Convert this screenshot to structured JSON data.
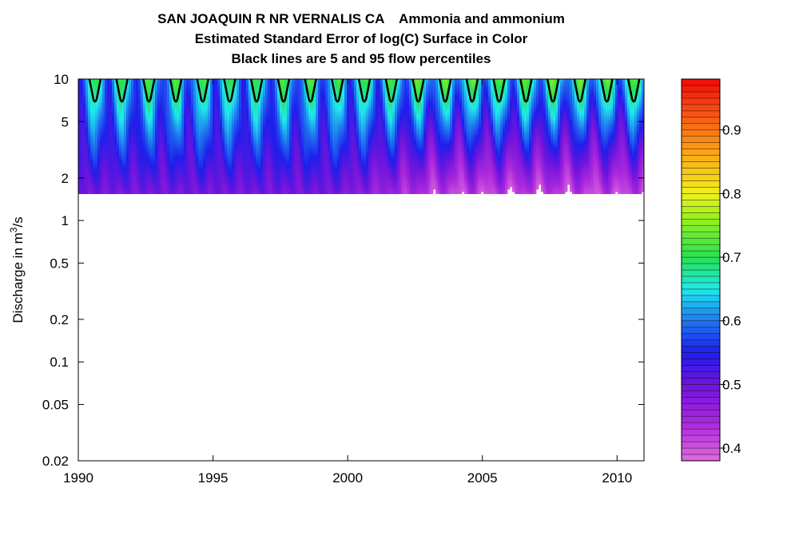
{
  "chart_data": {
    "type": "heatmap",
    "title_lines": [
      "SAN JOAQUIN R NR VERNALIS CA    Ammonia and ammonium",
      "Estimated Standard Error of log(C) Surface in Color",
      "Black lines are 5 and 95 flow percentiles"
    ],
    "ylabel_main": "Discharge in m",
    "ylabel_sup": "3",
    "ylabel_end": "/s",
    "xlim": [
      1990,
      2011
    ],
    "x_ticks": [
      "1990",
      "1995",
      "2000",
      "2005",
      "2010"
    ],
    "y_scale": "log",
    "ylim": [
      0.02,
      10
    ],
    "y_ticks": [
      "0.02",
      "0.05",
      "0.1",
      "0.2",
      "0.5",
      "1",
      "2",
      "5",
      "10"
    ],
    "surface_q_range": [
      1.5,
      10
    ],
    "colorbar": {
      "range": [
        0.38,
        0.98
      ],
      "ticks": [
        "0.4",
        "0.5",
        "0.6",
        "0.7",
        "0.8",
        "0.9"
      ]
    },
    "percentile_line_color": "#000000"
  }
}
